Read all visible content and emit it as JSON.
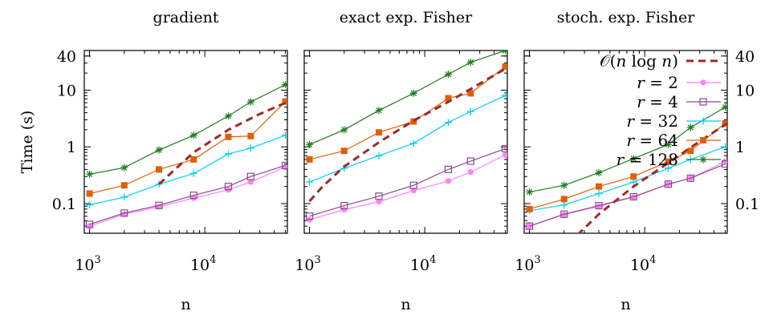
{
  "figure": {
    "ylabel": "Time (s)",
    "yticks": [
      {
        "value": 0.1,
        "label": "0.1"
      },
      {
        "value": 1,
        "label": "1"
      },
      {
        "value": 10,
        "label": "10"
      },
      {
        "value": 40,
        "label": "40"
      }
    ],
    "xticks": [
      {
        "value": 1000,
        "base": "10",
        "exp": "3"
      },
      {
        "value": 10000,
        "base": "10",
        "exp": "4"
      }
    ]
  },
  "chart_data": [
    {
      "type": "line",
      "title": "gradient",
      "xlabel": "n",
      "ylabel": "Time (s)",
      "x_scale": "log",
      "y_scale": "log",
      "xlim": [
        900,
        52000
      ],
      "ylim": [
        0.03,
        50
      ],
      "grid": false,
      "x": [
        1000,
        2000,
        4000,
        8000,
        16000,
        25000,
        50000
      ],
      "series": [
        {
          "name": "r = 2",
          "color": "#ff80ff",
          "marker": "circle-filled",
          "values": [
            0.04,
            0.065,
            0.088,
            0.125,
            0.175,
            0.24,
            0.44
          ]
        },
        {
          "name": "r = 4",
          "color": "#8a4a8a",
          "marker": "square-open",
          "values": [
            0.043,
            0.068,
            0.093,
            0.14,
            0.2,
            0.3,
            0.47
          ]
        },
        {
          "name": "r = 32",
          "color": "#00d0f0",
          "marker": "plus",
          "values": [
            0.095,
            0.13,
            0.22,
            0.34,
            0.75,
            0.95,
            1.6
          ]
        },
        {
          "name": "r = 64",
          "color": "#e0600a",
          "marker": "square-filled",
          "values": [
            0.15,
            0.21,
            0.4,
            0.6,
            1.5,
            1.55,
            6.3
          ]
        },
        {
          "name": "r = 128",
          "color": "#1e7d1e",
          "marker": "star",
          "values": [
            0.33,
            0.43,
            0.88,
            1.6,
            3.5,
            6.2,
            12.5
          ]
        },
        {
          "name": "O(n log n)",
          "color": "#a02828",
          "dashed": true,
          "x": [
            4000,
            8000,
            16000,
            30000,
            52000
          ],
          "values": [
            0.22,
            0.8,
            2.0,
            3.8,
            6.2
          ]
        }
      ]
    },
    {
      "type": "line",
      "title": "exact exp. Fisher",
      "xlabel": "n",
      "x_scale": "log",
      "y_scale": "log",
      "xlim": [
        900,
        52000
      ],
      "ylim": [
        0.03,
        50
      ],
      "grid": false,
      "x": [
        1000,
        2000,
        4000,
        8000,
        16000,
        25000,
        50000
      ],
      "series": [
        {
          "name": "r = 2",
          "color": "#ff80ff",
          "marker": "circle-filled",
          "values": [
            0.052,
            0.078,
            0.108,
            0.17,
            0.25,
            0.36,
            0.72
          ]
        },
        {
          "name": "r = 4",
          "color": "#8a4a8a",
          "marker": "square-open",
          "values": [
            0.06,
            0.092,
            0.135,
            0.21,
            0.4,
            0.56,
            0.93
          ]
        },
        {
          "name": "r = 32",
          "color": "#00d0f0",
          "marker": "plus",
          "values": [
            0.24,
            0.42,
            0.7,
            1.15,
            2.7,
            4.2,
            8.0
          ]
        },
        {
          "name": "r = 64",
          "color": "#e0600a",
          "marker": "square-filled",
          "values": [
            0.6,
            0.85,
            1.8,
            2.8,
            7.2,
            8.8,
            26.0
          ]
        },
        {
          "name": "r = 128",
          "color": "#1e7d1e",
          "marker": "star",
          "values": [
            1.1,
            2.0,
            4.4,
            8.8,
            19.0,
            31.0,
            50.0
          ]
        },
        {
          "name": "O(n log n)",
          "color": "#a02828",
          "dashed": true,
          "x": [
            1000,
            1300,
            2000,
            4000,
            8000,
            16000,
            30000,
            52000
          ],
          "values": [
            0.11,
            0.2,
            0.45,
            1.2,
            2.9,
            6.2,
            13.0,
            25.0
          ]
        }
      ]
    },
    {
      "type": "line",
      "title": "stoch. exp. Fisher",
      "xlabel": "n",
      "x_scale": "log",
      "y_scale": "log",
      "xlim": [
        900,
        52000
      ],
      "ylim": [
        0.03,
        50
      ],
      "grid": false,
      "legend_position": "top-right",
      "x": [
        1000,
        2000,
        4000,
        8000,
        16000,
        25000,
        50000
      ],
      "series": [
        {
          "name": "r = 2",
          "color": "#ff80ff",
          "marker": "circle-filled",
          "values": [
            0.04,
            0.064,
            0.09,
            0.13,
            0.22,
            0.28,
            0.55
          ]
        },
        {
          "name": "r = 4",
          "color": "#8a4a8a",
          "marker": "square-open",
          "values": [
            0.04,
            0.065,
            0.092,
            0.132,
            0.22,
            0.28,
            0.5
          ]
        },
        {
          "name": "r = 32",
          "color": "#00d0f0",
          "marker": "plus",
          "values": [
            0.075,
            0.095,
            0.15,
            0.24,
            0.42,
            0.6,
            1.0
          ]
        },
        {
          "name": "r = 64",
          "color": "#e0600a",
          "marker": "square-filled",
          "values": [
            0.08,
            0.12,
            0.2,
            0.3,
            0.55,
            0.85,
            2.6
          ]
        },
        {
          "name": "r = 128",
          "color": "#1e7d1e",
          "marker": "star",
          "values": [
            0.16,
            0.21,
            0.35,
            0.62,
            1.1,
            2.2,
            5.0
          ]
        },
        {
          "name": "O(n log n)",
          "color": "#a02828",
          "dashed": true,
          "x": [
            2200,
            4000,
            8000,
            16000,
            30000,
            52000
          ],
          "values": [
            0.02,
            0.065,
            0.2,
            0.52,
            1.25,
            2.6
          ]
        }
      ],
      "legend": [
        {
          "tex": "O(n log n)",
          "parts": [
            {
              "t": "𝒪",
              "style": "normal"
            },
            {
              "t": "(",
              "style": "normal"
            },
            {
              "t": "n",
              "style": "italic"
            },
            {
              "t": " log ",
              "style": "normal"
            },
            {
              "t": "n",
              "style": "italic"
            },
            {
              "t": ")",
              "style": "normal"
            }
          ]
        },
        {
          "var": "r",
          "eq": " = ",
          "num": "2"
        },
        {
          "var": "r",
          "eq": " = ",
          "num": "4"
        },
        {
          "var": "r",
          "eq": " = ",
          "num": "32"
        },
        {
          "var": "r",
          "eq": " = ",
          "num": "64"
        },
        {
          "var": "r",
          "eq": " = ",
          "num": "128"
        }
      ]
    }
  ]
}
